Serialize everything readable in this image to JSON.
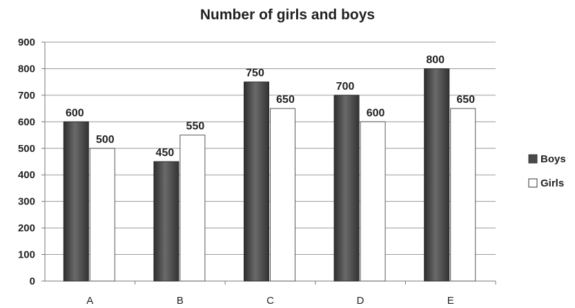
{
  "chart_data": {
    "type": "bar",
    "title": "Number of girls and boys",
    "xlabel": "",
    "ylabel": "",
    "categories": [
      "A",
      "B",
      "C",
      "D",
      "E"
    ],
    "series": [
      {
        "name": "Boys",
        "values": [
          600,
          450,
          750,
          700,
          800
        ],
        "color": "#4a4a4a"
      },
      {
        "name": "Girls",
        "values": [
          500,
          550,
          650,
          600,
          650
        ],
        "color": "#ffffff"
      }
    ],
    "ylim": [
      0,
      900
    ],
    "yticks": [
      0,
      100,
      200,
      300,
      400,
      500,
      600,
      700,
      800,
      900
    ],
    "grid": true,
    "legend": "right"
  }
}
